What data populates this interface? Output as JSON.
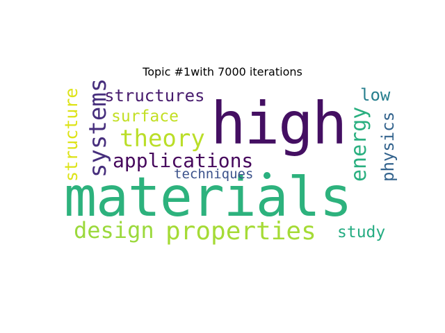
{
  "title": "Topic #1with 7000 iterations",
  "words": {
    "materials": {
      "text": "materials",
      "color": "#2db27d"
    },
    "high": {
      "text": "high",
      "color": "#440f62"
    },
    "properties": {
      "text": "properties",
      "color": "#a5db36"
    },
    "design": {
      "text": "design",
      "color": "#9bd93c"
    },
    "systems": {
      "text": "systems",
      "color": "#472f7d"
    },
    "structures": {
      "text": "structures",
      "color": "#481c6e"
    },
    "structure": {
      "text": "structure",
      "color": "#dde318"
    },
    "theory": {
      "text": "theory",
      "color": "#bade28"
    },
    "surface": {
      "text": "surface",
      "color": "#c2df23"
    },
    "applications": {
      "text": "applications",
      "color": "#46085c"
    },
    "techniques": {
      "text": "techniques",
      "color": "#3b528b"
    },
    "energy": {
      "text": "energy",
      "color": "#29af7f"
    },
    "physics": {
      "text": "physics",
      "color": "#33638d"
    },
    "low": {
      "text": "low",
      "color": "#277f8e"
    },
    "study": {
      "text": "study",
      "color": "#25ac82"
    }
  },
  "dot_color": "#2ab07f"
}
